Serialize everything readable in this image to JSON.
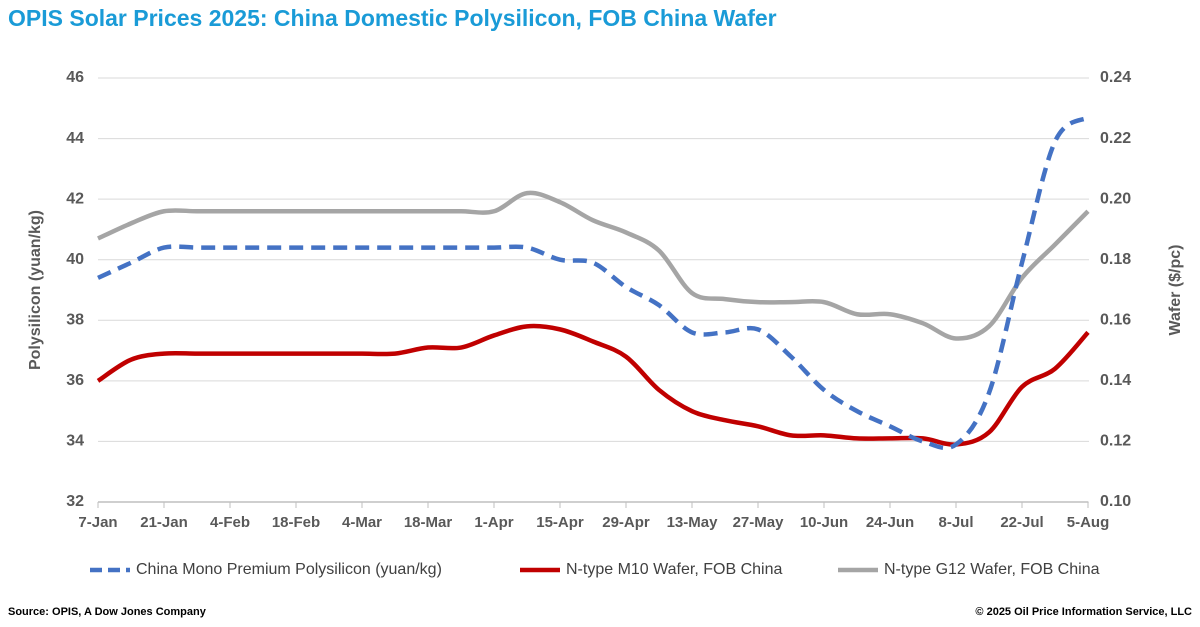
{
  "chart_data": {
    "type": "line",
    "title": "OPIS Solar Prices 2025: China Domestic Polysilicon, FOB China Wafer",
    "y_label": "Polysilicon (yuan/kg)",
    "y2_label": "Wafer ($/pc)",
    "source": "Source: OPIS, A Dow Jones Company",
    "copyright": "© 2025 Oil Price Information Service, LLC",
    "categories": [
      "7-Jan",
      null,
      "21-Jan",
      null,
      "4-Feb",
      null,
      "18-Feb",
      null,
      "4-Mar",
      null,
      "18-Mar",
      null,
      "1-Apr",
      null,
      "15-Apr",
      null,
      "29-Apr",
      null,
      "13-May",
      null,
      "27-May",
      null,
      "10-Jun",
      null,
      "24-Jun",
      null,
      "8-Jul",
      null,
      "22-Jul",
      null,
      "5-Aug"
    ],
    "ylim": [
      32,
      46
    ],
    "yticks": [
      32,
      34,
      36,
      38,
      40,
      42,
      44,
      46
    ],
    "y2lim": [
      0.1,
      0.24
    ],
    "y2ticks": [
      {
        "value": 0.1,
        "label": "0.10"
      },
      0.12,
      0.14,
      0.16,
      0.18,
      {
        "value": 0.2,
        "label": "0.20"
      },
      0.22,
      0.24
    ],
    "grid": true,
    "legend": "bottom",
    "series": [
      {
        "name": "China Mono Premium Polysilicon (yuan/kg)",
        "color": "#4472c4",
        "dashed": true,
        "values": [
          39.4,
          39.9,
          40.4,
          40.4,
          40.4,
          40.4,
          40.4,
          40.4,
          40.4,
          40.4,
          40.4,
          40.4,
          40.4,
          40.4,
          40.0,
          39.9,
          39.1,
          38.5,
          37.6,
          37.6,
          37.7,
          36.8,
          35.7,
          35.0,
          34.5,
          34.0,
          33.9,
          35.6,
          39.9,
          43.9,
          44.7
        ]
      },
      {
        "name": "N-type M10 Wafer, FOB China",
        "color": "#c00000",
        "dashed": false,
        "axis": "y2",
        "values": [
          0.14,
          0.147,
          0.149,
          0.149,
          0.149,
          0.149,
          0.149,
          0.149,
          0.149,
          0.149,
          0.151,
          0.151,
          0.155,
          0.158,
          0.157,
          0.153,
          0.148,
          0.137,
          0.13,
          0.127,
          0.125,
          0.122,
          0.122,
          0.121,
          0.121,
          0.121,
          0.119,
          0.123,
          0.138,
          0.144,
          0.156
        ]
      },
      {
        "name": "N-type G12 Wafer, FOB China",
        "color": "#a5a5a5",
        "dashed": false,
        "axis": "y2",
        "values": [
          0.187,
          0.192,
          0.196,
          0.196,
          0.196,
          0.196,
          0.196,
          0.196,
          0.196,
          0.196,
          0.196,
          0.196,
          0.196,
          0.202,
          0.199,
          0.193,
          0.189,
          0.183,
          0.169,
          0.167,
          0.166,
          0.166,
          0.166,
          0.162,
          0.162,
          0.159,
          0.154,
          0.158,
          0.174,
          0.185,
          0.196
        ]
      }
    ]
  }
}
